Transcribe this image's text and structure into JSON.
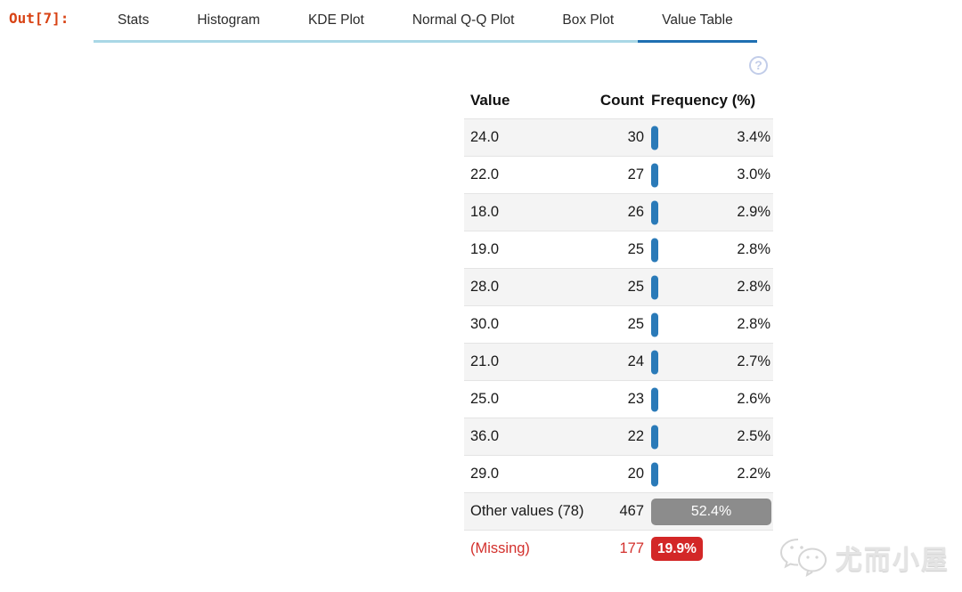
{
  "prompt": {
    "label": "Out[7]:"
  },
  "tabs": {
    "items": [
      {
        "label": "Stats",
        "active": false
      },
      {
        "label": "Histogram",
        "active": false
      },
      {
        "label": "KDE Plot",
        "active": false
      },
      {
        "label": "Normal Q-Q Plot",
        "active": false
      },
      {
        "label": "Box Plot",
        "active": false
      },
      {
        "label": "Value Table",
        "active": true
      }
    ]
  },
  "help_icon": {
    "glyph": "?",
    "name": "question-mark-circle"
  },
  "table": {
    "columns": [
      "Value",
      "Count",
      "Frequency (%)"
    ],
    "rows": [
      {
        "value": "24.0",
        "count": "30",
        "frequency": "3.4%",
        "bar_type": "pill"
      },
      {
        "value": "22.0",
        "count": "27",
        "frequency": "3.0%",
        "bar_type": "pill"
      },
      {
        "value": "18.0",
        "count": "26",
        "frequency": "2.9%",
        "bar_type": "pill"
      },
      {
        "value": "19.0",
        "count": "25",
        "frequency": "2.8%",
        "bar_type": "pill"
      },
      {
        "value": "28.0",
        "count": "25",
        "frequency": "2.8%",
        "bar_type": "pill"
      },
      {
        "value": "30.0",
        "count": "25",
        "frequency": "2.8%",
        "bar_type": "pill"
      },
      {
        "value": "21.0",
        "count": "24",
        "frequency": "2.7%",
        "bar_type": "pill"
      },
      {
        "value": "25.0",
        "count": "23",
        "frequency": "2.6%",
        "bar_type": "pill"
      },
      {
        "value": "36.0",
        "count": "22",
        "frequency": "2.5%",
        "bar_type": "pill"
      },
      {
        "value": "29.0",
        "count": "20",
        "frequency": "2.2%",
        "bar_type": "pill"
      },
      {
        "value": "Other values (78)",
        "count": "467",
        "frequency": "52.4%",
        "bar_type": "gray-bar"
      },
      {
        "value": "(Missing)",
        "count": "177",
        "frequency": "19.9%",
        "bar_type": "red-badge",
        "missing": true
      }
    ]
  },
  "watermark": {
    "text": "尤而小屋",
    "icon": "wechat-logo"
  },
  "colors": {
    "out_prompt": "#d84315",
    "tab_underline": "#a9d7e6",
    "active_tab_underline": "#1e6fb2",
    "bar_blue": "#2a7ab8",
    "bar_gray": "#8c8c8c",
    "missing_red": "#d3302c",
    "row_alt_bg": "#f4f4f4"
  }
}
